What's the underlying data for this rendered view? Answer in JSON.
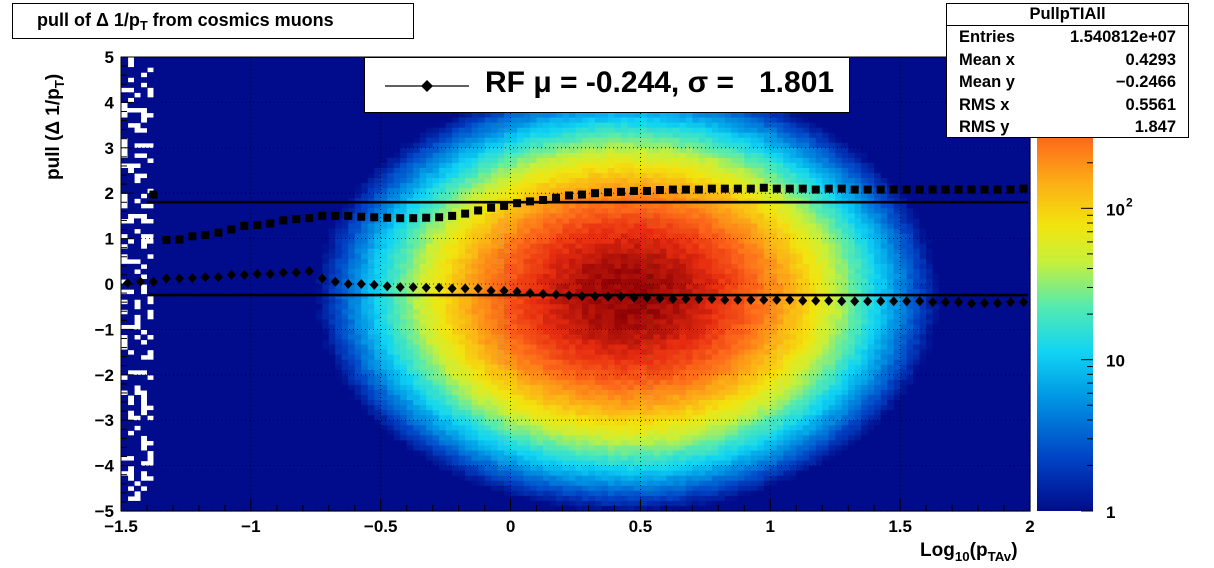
{
  "title": {
    "main": "pull of Δ 1/p",
    "sub": "T",
    "rest": " from cosmics muons"
  },
  "stats": {
    "name": "PullpTIAll",
    "rows": [
      {
        "label": "Entries",
        "value": "1.540812e+07"
      },
      {
        "label": "Mean x",
        "value": "0.4293"
      },
      {
        "label": "Mean y",
        "value": "−0.2466"
      },
      {
        "label": "RMS x",
        "value": "0.5561"
      },
      {
        "label": "RMS y",
        "value": "1.847"
      }
    ]
  },
  "legend": {
    "text": "RF μ = -0.244, σ =   1.801"
  },
  "axes": {
    "xlabel_main": "Log",
    "xlabel_sub1": "10",
    "xlabel_open": "(p",
    "xlabel_sub2": "TAv",
    "xlabel_close": ")",
    "ylabel_main": "pull (Δ 1/p",
    "ylabel_sub": "T",
    "ylabel_close": ")"
  },
  "chart_data": {
    "type": "heatmap",
    "xlim": [
      -1.5,
      2
    ],
    "ylim": [
      -5,
      5
    ],
    "x_ticks": [
      -1.5,
      -1,
      -0.5,
      0,
      0.5,
      1,
      1.5,
      2
    ],
    "x_tick_labels": [
      "−1.5",
      "−1",
      "−0.5",
      "0",
      "0.5",
      "1",
      "1.5",
      "2"
    ],
    "y_ticks": [
      -5,
      -4,
      -3,
      -2,
      -1,
      0,
      1,
      2,
      3,
      4,
      5
    ],
    "y_tick_labels": [
      "−5",
      "−4",
      "−3",
      "−2",
      "−1",
      "0",
      "1",
      "2",
      "3",
      "4",
      "5"
    ],
    "colorbar": {
      "scale": "log",
      "range": [
        1,
        1000
      ],
      "labels": [
        {
          "value": 1,
          "text": "1"
        },
        {
          "value": 10,
          "text": "10"
        },
        {
          "value": 100,
          "text": "10",
          "sup": "2"
        }
      ]
    },
    "grid": true,
    "hlines": [
      {
        "name": "sigma",
        "y": 1.801
      },
      {
        "name": "mu",
        "y": -0.244
      }
    ],
    "series": [
      {
        "name": "RF",
        "marker": "diamond",
        "x": [
          -1.475,
          -1.425,
          -1.375,
          -1.325,
          -1.275,
          -1.225,
          -1.175,
          -1.125,
          -1.075,
          -1.025,
          -0.975,
          -0.925,
          -0.875,
          -0.825,
          -0.775,
          -0.725,
          -0.675,
          -0.625,
          -0.575,
          -0.525,
          -0.475,
          -0.425,
          -0.375,
          -0.325,
          -0.275,
          -0.225,
          -0.175,
          -0.125,
          -0.075,
          -0.025,
          0.025,
          0.075,
          0.125,
          0.175,
          0.225,
          0.275,
          0.325,
          0.375,
          0.425,
          0.475,
          0.525,
          0.575,
          0.625,
          0.675,
          0.725,
          0.775,
          0.825,
          0.875,
          0.925,
          0.975,
          1.025,
          1.075,
          1.125,
          1.175,
          1.225,
          1.275,
          1.325,
          1.375,
          1.425,
          1.475,
          1.525,
          1.575,
          1.625,
          1.675,
          1.725,
          1.775,
          1.825,
          1.875,
          1.925,
          1.975
        ],
        "y": [
          0.02,
          0.05,
          0.05,
          0.12,
          0.12,
          0.13,
          0.15,
          0.15,
          0.2,
          0.2,
          0.22,
          0.22,
          0.25,
          0.25,
          0.28,
          0.12,
          0.05,
          0.0,
          0.0,
          -0.02,
          -0.05,
          -0.07,
          -0.07,
          -0.08,
          -0.08,
          -0.1,
          -0.1,
          -0.1,
          -0.15,
          -0.15,
          -0.17,
          -0.2,
          -0.22,
          -0.23,
          -0.25,
          -0.27,
          -0.27,
          -0.28,
          -0.28,
          -0.3,
          -0.3,
          -0.32,
          -0.33,
          -0.33,
          -0.33,
          -0.33,
          -0.35,
          -0.35,
          -0.35,
          -0.35,
          -0.35,
          -0.35,
          -0.37,
          -0.37,
          -0.37,
          -0.38,
          -0.38,
          -0.38,
          -0.38,
          -0.38,
          -0.38,
          -0.38,
          -0.4,
          -0.4,
          -0.4,
          -0.43,
          -0.42,
          -0.42,
          -0.4,
          -0.4
        ]
      },
      {
        "name": "sigma",
        "marker": "square",
        "x": [
          -1.375,
          -1.325,
          -1.275,
          -1.225,
          -1.175,
          -1.125,
          -1.075,
          -1.025,
          -0.975,
          -0.925,
          -0.875,
          -0.825,
          -0.775,
          -0.725,
          -0.675,
          -0.625,
          -0.575,
          -0.525,
          -0.475,
          -0.425,
          -0.375,
          -0.325,
          -0.275,
          -0.225,
          -0.175,
          -0.125,
          -0.075,
          -0.025,
          0.025,
          0.075,
          0.125,
          0.175,
          0.225,
          0.275,
          0.325,
          0.375,
          0.425,
          0.475,
          0.525,
          0.575,
          0.625,
          0.675,
          0.725,
          0.775,
          0.825,
          0.875,
          0.925,
          0.975,
          1.025,
          1.075,
          1.125,
          1.175,
          1.225,
          1.275,
          1.325,
          1.375,
          1.425,
          1.475,
          1.525,
          1.575,
          1.625,
          1.675,
          1.725,
          1.775,
          1.825,
          1.875,
          1.925,
          1.975
        ],
        "y": [
          1.97,
          0.97,
          0.98,
          1.05,
          1.08,
          1.13,
          1.2,
          1.28,
          1.3,
          1.33,
          1.4,
          1.43,
          1.45,
          1.5,
          1.5,
          1.5,
          1.48,
          1.47,
          1.46,
          1.45,
          1.45,
          1.46,
          1.47,
          1.5,
          1.55,
          1.62,
          1.68,
          1.72,
          1.78,
          1.82,
          1.85,
          1.9,
          1.95,
          1.97,
          2.0,
          2.02,
          2.03,
          2.05,
          2.05,
          2.07,
          2.08,
          2.08,
          2.08,
          2.1,
          2.1,
          2.1,
          2.1,
          2.12,
          2.1,
          2.1,
          2.1,
          2.08,
          2.1,
          2.1,
          2.08,
          2.08,
          2.08,
          2.08,
          2.08,
          2.08,
          2.08,
          2.08,
          2.08,
          2.08,
          2.08,
          2.08,
          2.08,
          2.1
        ]
      }
    ]
  }
}
